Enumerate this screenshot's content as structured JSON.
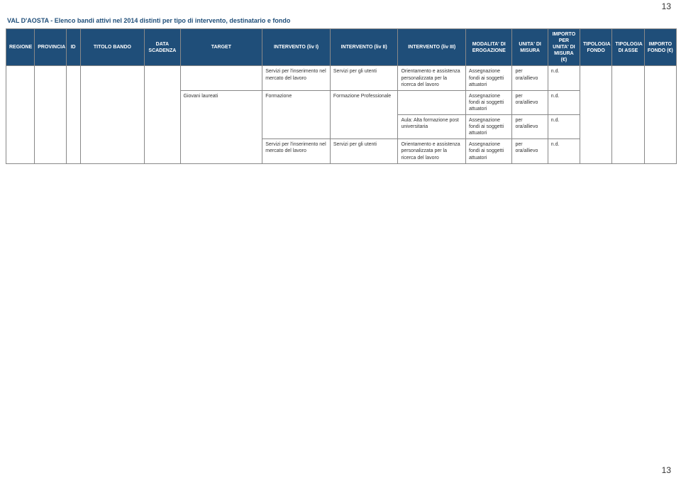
{
  "page_number": "13",
  "title": "VAL D'AOSTA - Elenco bandi attivi nel 2014 distinti per tipo di intervento, destinatario e fondo",
  "headers": {
    "regione": "REGIONE",
    "provincia": "PROVINCIA",
    "id": "ID",
    "titolo": "TITOLO BANDO",
    "data": "DATA SCADENZA",
    "target": "TARGET",
    "liv1": "INTERVENTO (liv I)",
    "liv2": "INTERVENTO (liv II)",
    "liv3": "INTERVENTO (liv III)",
    "mod": "MODALITA' DI EROGAZIONE",
    "unita": "UNITA' DI MISURA",
    "importo_per": "IMPORTO PER UNITA' DI MISURA (€)",
    "tip_fondo": "TIPOLOGIA FONDO",
    "tip_asse": "TIPOLOGIA DI ASSE",
    "importo": "IMPORTO FONDO (€)"
  },
  "rows": {
    "r1": {
      "target": "",
      "liv1": "Servizi per l'inserimento nel mercato del lavoro",
      "liv2": "Servizi per gli utenti",
      "liv3": "Orientamento e assistenza personalizzata per la ricerca del lavoro",
      "mod": "Assegnazione fondi ai soggetti attuatori",
      "unita": "per ora/allievo",
      "importo_per": "n.d."
    },
    "r2": {
      "target": "Giovani laureati",
      "liv1": "Formazione",
      "liv2": "Formazione Professionale",
      "liv3": "",
      "mod": "Assegnazione fondi ai soggetti attuatori",
      "unita": "per ora/allievo",
      "importo_per": "n.d."
    },
    "r3": {
      "liv3": "Aula: Alta formazione post universitaria",
      "mod": "Assegnazione fondi ai soggetti attuatori",
      "unita": "per ora/allievo",
      "importo_per": "n.d."
    },
    "r4": {
      "liv1": "Servizi per l'inserimento nel mercato del lavoro",
      "liv2": "Servizi per gli utenti",
      "liv3": "Orientamento e assistenza personalizzata per la ricerca del lavoro",
      "mod": "Assegnazione fondi ai soggetti attuatori",
      "unita": "per ora/allievo",
      "importo_per": "n.d."
    }
  },
  "colors": {
    "header_bg": "#1f4e79",
    "header_fg": "#ffffff",
    "border": "#888888",
    "title": "#1f4e79",
    "page_bg": "#ffffff"
  }
}
